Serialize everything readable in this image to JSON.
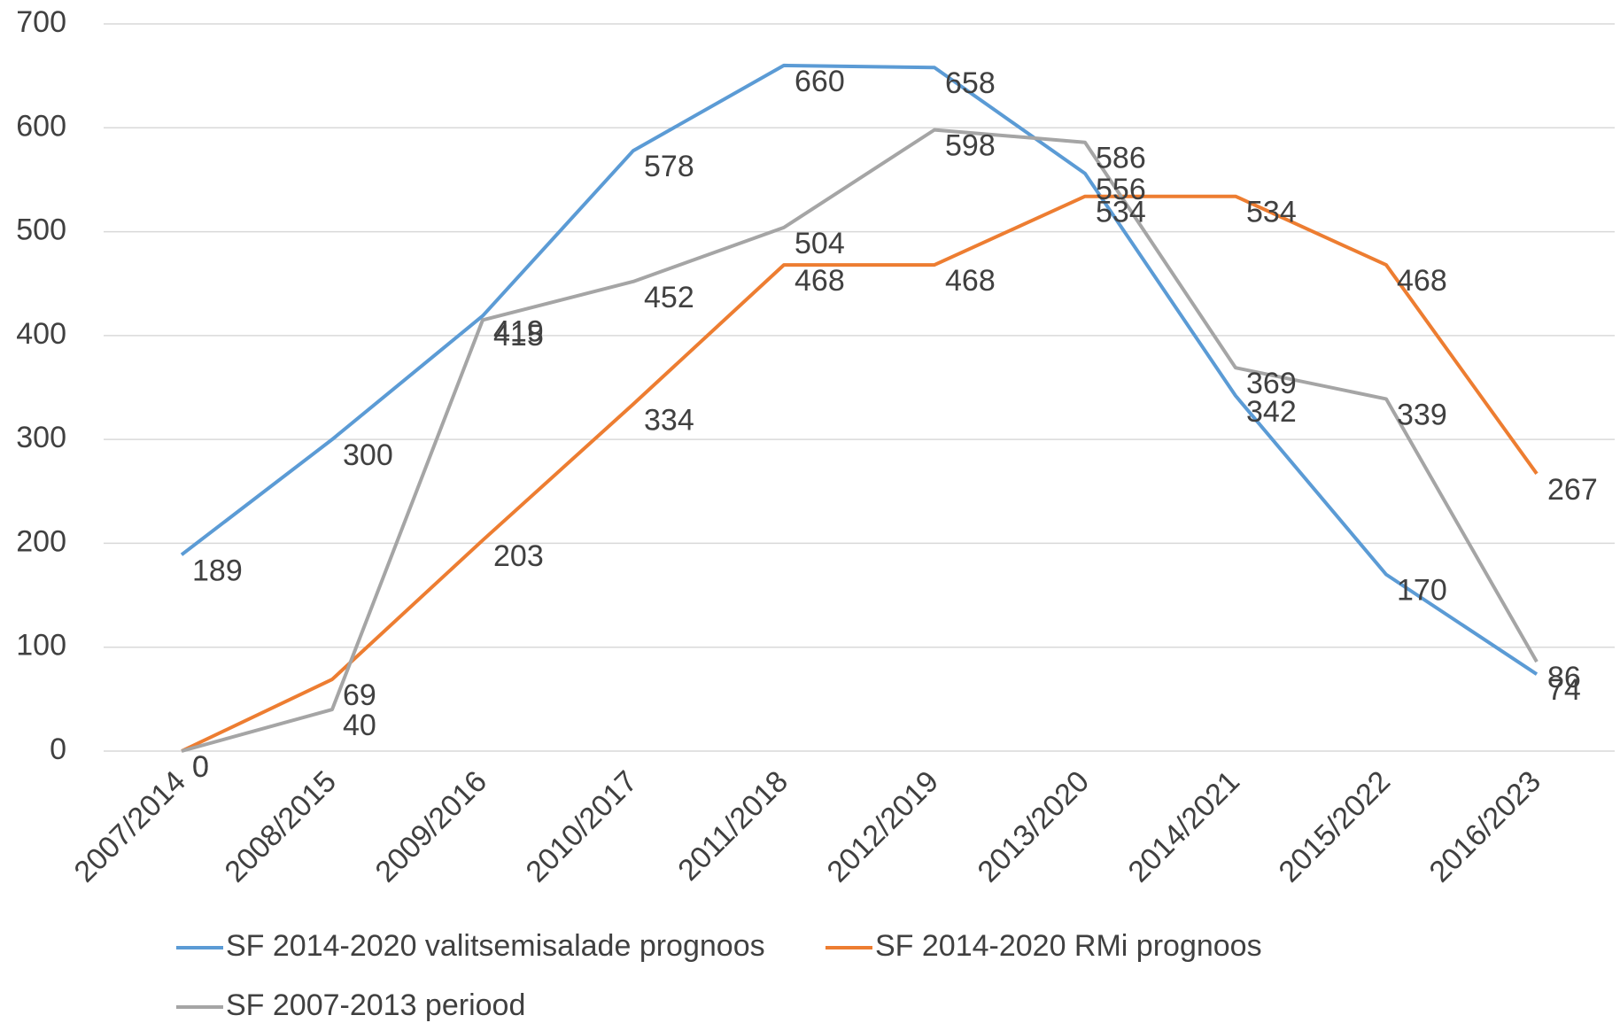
{
  "chart_data": {
    "type": "line",
    "categories": [
      "2007/2014",
      "2008/2015",
      "2009/2016",
      "2010/2017",
      "2011/2018",
      "2012/2019",
      "2013/2020",
      "2014/2021",
      "2015/2022",
      "2016/2023"
    ],
    "series": [
      {
        "name": "SF 2014-2020 valitsemisalade prognoos",
        "color": "#5b9bd5",
        "values": [
          189,
          300,
          419,
          578,
          660,
          658,
          556,
          342,
          170,
          74
        ]
      },
      {
        "name": "SF 2014-2020 RMi prognoos",
        "color": "#ed7d31",
        "values": [
          0,
          69,
          203,
          334,
          468,
          468,
          534,
          534,
          468,
          267
        ]
      },
      {
        "name": "SF 2007-2013 periood",
        "color": "#a5a5a5",
        "values": [
          0,
          40,
          415,
          452,
          504,
          598,
          586,
          369,
          339,
          86
        ]
      }
    ],
    "ylim": [
      0,
      700
    ],
    "yticks": [
      0,
      100,
      200,
      300,
      400,
      500,
      600,
      700
    ],
    "grid": true,
    "legend": "bottom"
  }
}
